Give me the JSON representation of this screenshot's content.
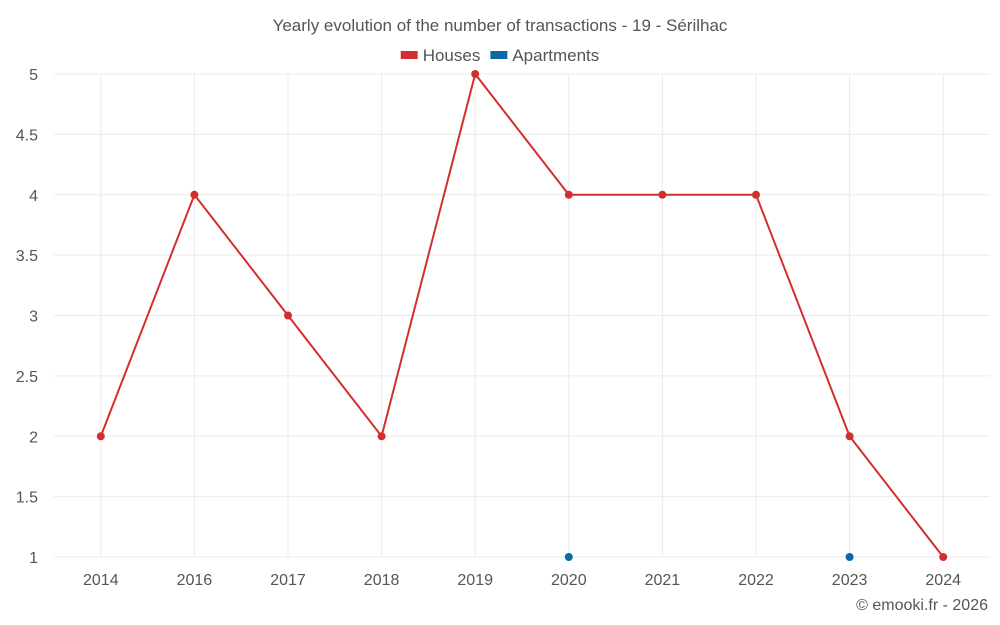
{
  "chart_data": {
    "type": "line",
    "title": "Yearly evolution of the number of transactions - 19 - Sérilhac",
    "categories": [
      "2014",
      "2016",
      "2017",
      "2018",
      "2019",
      "2020",
      "2021",
      "2022",
      "2023",
      "2024"
    ],
    "series": [
      {
        "name": "Houses",
        "color": "#d32f2f",
        "values": [
          2,
          4,
          3,
          2,
          5,
          4,
          4,
          4,
          2,
          1
        ]
      },
      {
        "name": "Apartments",
        "color": "#0b6aa2",
        "values": [
          null,
          null,
          null,
          null,
          null,
          1,
          null,
          null,
          1,
          null
        ]
      }
    ],
    "y_ticks": [
      "1",
      "1.5",
      "2",
      "2.5",
      "3",
      "3.5",
      "4",
      "4.5",
      "5"
    ],
    "ylim": [
      1,
      5
    ],
    "xlabel": "",
    "ylabel": "",
    "grid": true,
    "legend": "top-center"
  },
  "credit": "© emooki.fr - 2026"
}
